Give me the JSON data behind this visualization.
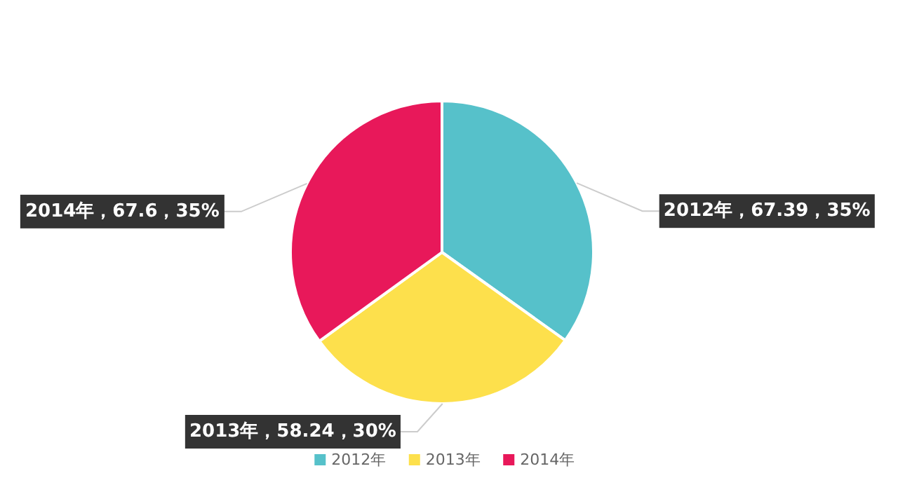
{
  "chart_data": {
    "type": "pie",
    "categories": [
      "2012年",
      "2013年",
      "2014年"
    ],
    "values": [
      67.39,
      58.24,
      67.6
    ],
    "colors": [
      "#56c1ca",
      "#fde04c",
      "#e8185a"
    ],
    "value_labels": [
      "2012年，67.39，35%",
      "2013年，58.24，30%",
      "2014年，67.6，35%"
    ],
    "legend": "bottom"
  }
}
